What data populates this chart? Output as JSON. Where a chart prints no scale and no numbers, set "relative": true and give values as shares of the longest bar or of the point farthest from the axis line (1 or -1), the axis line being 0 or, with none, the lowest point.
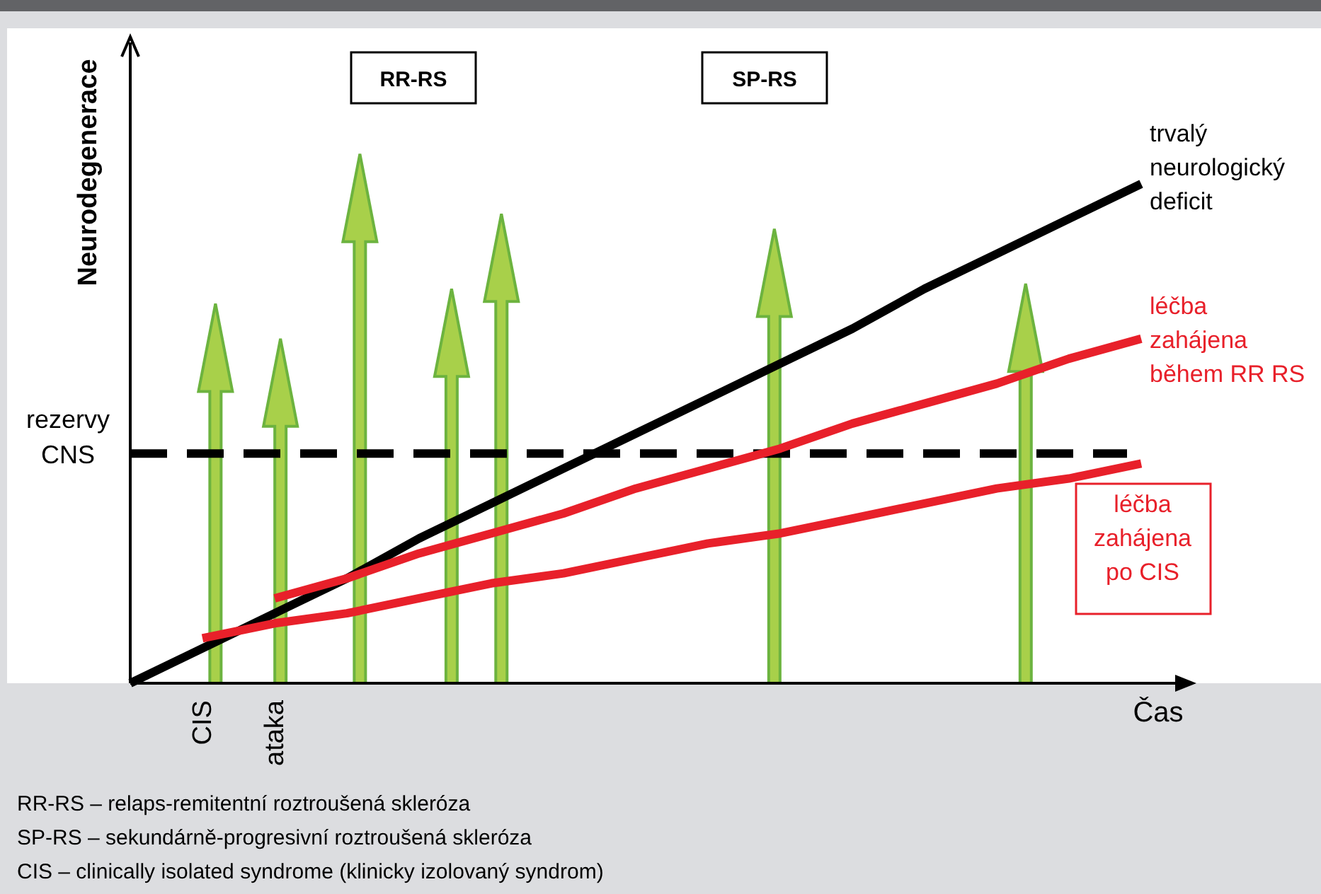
{
  "chart_data": {
    "type": "line",
    "relative": true,
    "xlabel": "Čas",
    "ylabel": "Neurodegenerace",
    "categories": [
      null,
      "CIS",
      "ataka",
      null,
      null,
      null,
      null,
      null,
      null,
      null,
      null,
      null,
      null,
      null,
      null
    ],
    "series": [
      {
        "name": "trvalý neurologický deficit",
        "color": "#000000",
        "values": [
          0,
          0.07,
          0.14,
          0.21,
          0.29,
          0.36,
          0.43,
          0.5,
          0.57,
          0.64,
          0.71,
          0.79,
          0.86,
          0.93,
          1
        ]
      },
      {
        "name": "léčba zahájena během RR RS",
        "color": "#e8202a",
        "values": [
          null,
          null,
          0.17,
          0.21,
          0.26,
          0.3,
          0.34,
          0.39,
          0.43,
          0.47,
          0.52,
          0.56,
          0.6,
          0.65,
          0.69
        ]
      },
      {
        "name": "léčba zahájena po CIS",
        "color": "#e8202a",
        "values": [
          null,
          0.09,
          0.12,
          0.14,
          0.17,
          0.2,
          0.22,
          0.25,
          0.28,
          0.3,
          0.33,
          0.36,
          0.39,
          0.41,
          0.44
        ]
      }
    ],
    "ref_lines": [
      {
        "axis": "y",
        "value": 0.46,
        "label": "rezervy CNS",
        "color": "#000000",
        "line_style": "dashed"
      }
    ],
    "legend": false,
    "grid": false,
    "annotations": [
      "RR-RS",
      "SP-RS",
      "RR-RS – relaps-remitentní roztroušená skleróza",
      "SP-RS – sekundárně-progresivní roztroušená skleróza",
      "CIS – clinically isolated syndrome (klinicky izolovaný syndrom)"
    ]
  }
}
